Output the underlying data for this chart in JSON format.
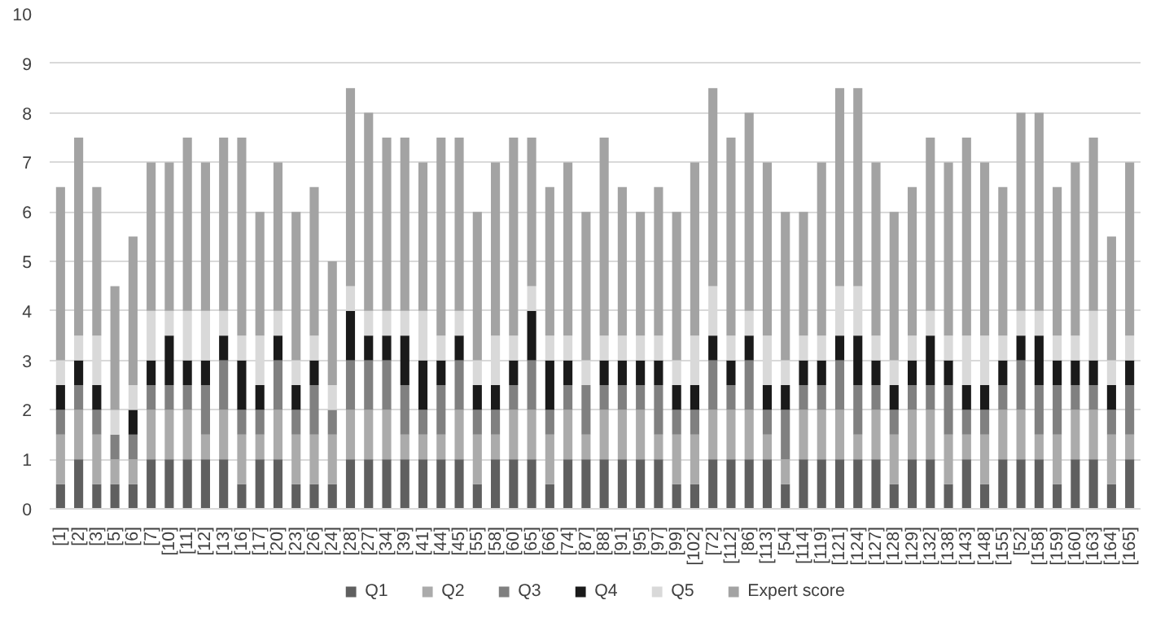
{
  "chart_data": {
    "type": "bar",
    "stacked": true,
    "categories": [
      "[1]",
      "[2]",
      "[3]",
      "[5]",
      "[6]",
      "[7]",
      "[10]",
      "[11]",
      "[12]",
      "[13]",
      "[16]",
      "[17]",
      "[20]",
      "[23]",
      "[26]",
      "[24]",
      "[28]",
      "[27]",
      "[34]",
      "[39]",
      "[41]",
      "[44]",
      "[45]",
      "[55]",
      "[58]",
      "[60]",
      "[65]",
      "[66]",
      "[74]",
      "[87]",
      "[88]",
      "[91]",
      "[95]",
      "[97]",
      "[99]",
      "[102]",
      "[72]",
      "[112]",
      "[86]",
      "[113]",
      "[54]",
      "[114]",
      "[119]",
      "[121]",
      "[124]",
      "[127]",
      "[128]",
      "[129]",
      "[132]",
      "[138]",
      "[143]",
      "[148]",
      "[155]",
      "[52]",
      "[158]",
      "[159]",
      "[160]",
      "[163]",
      "[164]",
      "[165]"
    ],
    "series": [
      {
        "name": "Q1",
        "color": "#5f5f5f",
        "values": [
          0.5,
          1,
          0.5,
          0.5,
          0.5,
          1,
          1,
          1,
          1,
          1,
          0.5,
          1,
          1,
          0.5,
          0.5,
          0.5,
          1,
          1,
          1,
          1,
          1,
          1,
          1,
          0.5,
          1,
          1,
          1,
          0.5,
          1,
          1,
          1,
          1,
          1,
          1,
          0.5,
          0.5,
          1,
          1,
          1,
          1,
          0.5,
          1,
          1,
          1,
          1,
          1,
          0.5,
          1,
          1,
          0.5,
          1,
          0.5,
          1,
          1,
          1,
          0.5,
          1,
          1,
          0.5,
          1
        ]
      },
      {
        "name": "Q2",
        "color": "#ababab",
        "values": [
          1,
          1,
          1,
          0.5,
          0.5,
          1,
          1,
          1,
          0.5,
          1,
          1,
          0.5,
          1,
          1,
          1,
          1,
          1,
          1,
          1,
          0.5,
          0.5,
          0.5,
          1,
          1,
          0.5,
          1,
          1,
          1,
          1,
          0.5,
          1,
          1,
          1,
          0.5,
          1,
          1,
          1,
          1,
          1,
          0.5,
          0.5,
          1,
          1,
          1,
          0.5,
          1,
          1,
          1,
          1,
          1,
          0.5,
          1,
          1,
          1,
          0.5,
          1,
          1,
          1,
          1,
          0.5
        ]
      },
      {
        "name": "Q3",
        "color": "#808080",
        "values": [
          0.5,
          0.5,
          0.5,
          0.5,
          0.5,
          0.5,
          0.5,
          0.5,
          1,
          1,
          0.5,
          0.5,
          1,
          0.5,
          1,
          0.5,
          1,
          1,
          1,
          1,
          0.5,
          1,
          1,
          0.5,
          0.5,
          0.5,
          1,
          0.5,
          0.5,
          1,
          0.5,
          0.5,
          0.5,
          1,
          0.5,
          0.5,
          1,
          0.5,
          1,
          0.5,
          1,
          0.5,
          0.5,
          1,
          1,
          0.5,
          0.5,
          0.5,
          0.5,
          1,
          0.5,
          0.5,
          0.5,
          1,
          1,
          1,
          0.5,
          0.5,
          0.5,
          1
        ]
      },
      {
        "name": "Q4",
        "color": "#1a1a1a",
        "values": [
          0.5,
          0.5,
          0.5,
          0,
          0.5,
          0.5,
          1,
          0.5,
          0.5,
          0.5,
          1,
          0.5,
          0.5,
          0.5,
          0.5,
          0,
          1,
          0.5,
          0.5,
          1,
          1,
          0.5,
          0.5,
          0.5,
          0.5,
          0.5,
          1,
          1,
          0.5,
          0,
          0.5,
          0.5,
          0.5,
          0.5,
          0.5,
          0.5,
          0.5,
          0.5,
          0.5,
          0.5,
          0.5,
          0.5,
          0.5,
          0.5,
          1,
          0.5,
          0.5,
          0.5,
          1,
          0.5,
          0.5,
          0.5,
          0.5,
          0.5,
          1,
          0.5,
          0.5,
          0.5,
          0.5,
          0.5
        ]
      },
      {
        "name": "Q5",
        "color": "#d9d9d9",
        "values": [
          0.5,
          0.5,
          1,
          0.5,
          0.5,
          1,
          0.5,
          1,
          1,
          0.5,
          0.5,
          1,
          0.5,
          0.5,
          0.5,
          0.5,
          0.5,
          0.5,
          0.5,
          0.5,
          1,
          0.5,
          0.5,
          0.5,
          1,
          0.5,
          0.5,
          0.5,
          0.5,
          0.5,
          0.5,
          0.5,
          0.5,
          0.5,
          0.5,
          1,
          1,
          0.5,
          0.5,
          1,
          0.5,
          0.5,
          0.5,
          1,
          1,
          0.5,
          0.5,
          0.5,
          0.5,
          0.5,
          1,
          1,
          0.5,
          0.5,
          0.5,
          0.5,
          0.5,
          1,
          0.5,
          0.5
        ]
      },
      {
        "name": "Expert score",
        "color": "#a3a3a3",
        "values": [
          3.5,
          4,
          3,
          2.5,
          3,
          3,
          3,
          3.5,
          3,
          3.5,
          4,
          2.5,
          3,
          3,
          3,
          2.5,
          4,
          4,
          3.5,
          3.5,
          3,
          4,
          3.5,
          3,
          3.5,
          4,
          3,
          3,
          3.5,
          3,
          4,
          3,
          2.5,
          3,
          3,
          3.5,
          4,
          4,
          4,
          3.5,
          3,
          2.5,
          3.5,
          4,
          4,
          3.5,
          3,
          3,
          3.5,
          3.5,
          4,
          3.5,
          3,
          4,
          4,
          3,
          3.5,
          3.5,
          2.5,
          3.5
        ]
      }
    ],
    "ylim": [
      0,
      10
    ],
    "yticks": [
      0,
      1,
      2,
      3,
      4,
      5,
      6,
      7,
      8,
      9,
      10
    ],
    "grid": "y",
    "legend": "bottom"
  }
}
